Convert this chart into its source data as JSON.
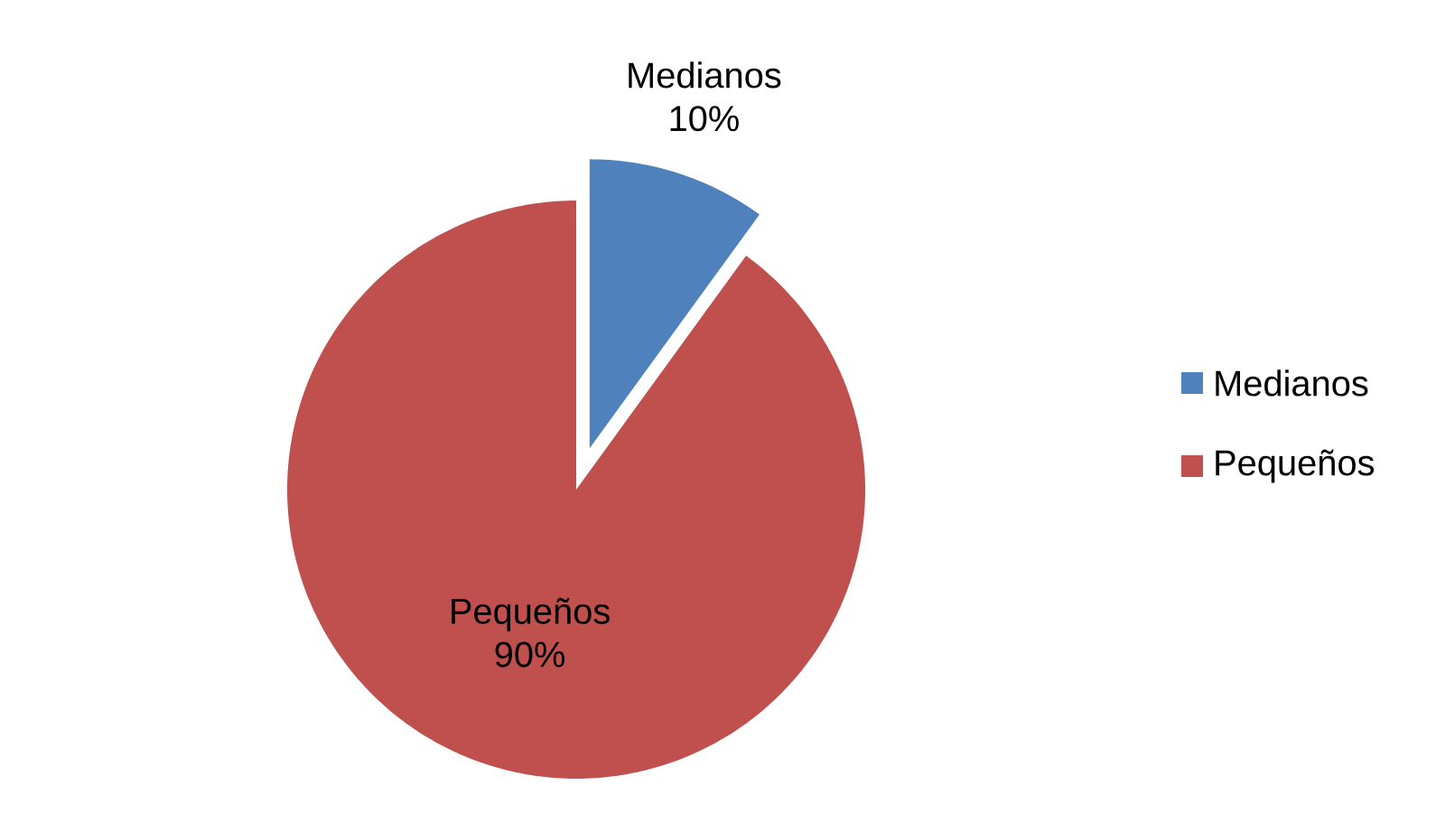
{
  "chart_data": {
    "type": "pie",
    "categories": [
      "Medianos",
      "Pequeños"
    ],
    "values": [
      10,
      90
    ],
    "colors": [
      "#4f81bd",
      "#c0504d"
    ],
    "value_labels": [
      "10%",
      "90%"
    ],
    "legend": "right"
  }
}
